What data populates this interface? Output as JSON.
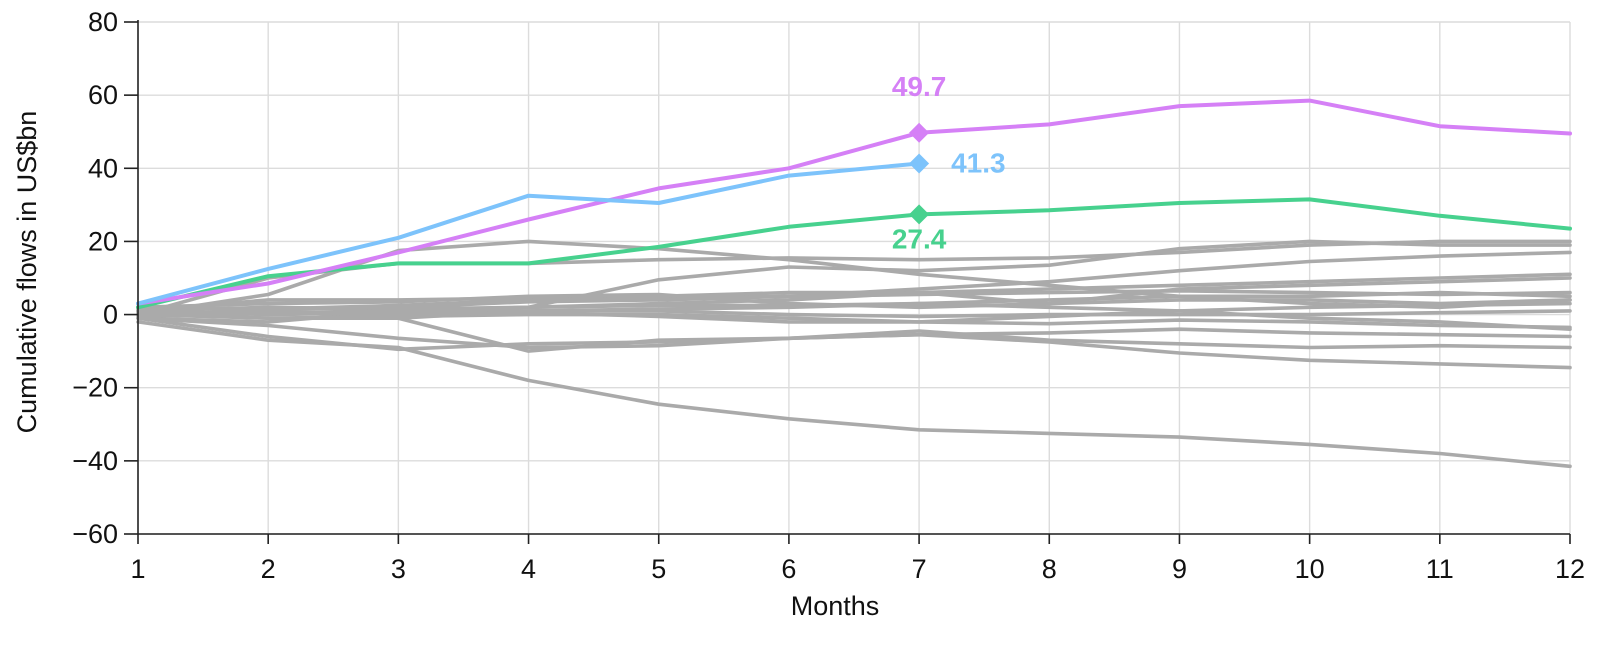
{
  "chart_data": {
    "type": "line",
    "xlabel": "Months",
    "ylabel": "Cumulative flows in US$bn",
    "x": [
      1,
      2,
      3,
      4,
      5,
      6,
      7,
      8,
      9,
      10,
      11,
      12
    ],
    "xlim": [
      1,
      12
    ],
    "ylim": [
      -60,
      80
    ],
    "x_ticks": [
      1,
      2,
      3,
      4,
      5,
      6,
      7,
      8,
      9,
      10,
      11,
      12
    ],
    "y_ticks": [
      -60,
      -40,
      -20,
      0,
      20,
      40,
      60,
      80
    ],
    "grid": true,
    "legend": "none",
    "background_color": "#aaaaaa",
    "highlighted_series": [
      {
        "color": "#d580f6",
        "values": [
          3,
          8.5,
          17,
          26,
          34.5,
          40,
          49.7,
          52,
          57,
          58.5,
          51.5,
          49.5
        ],
        "marker_point": {
          "x": 7,
          "y": 49.7
        },
        "label": "49.7"
      },
      {
        "color": "#7dc3fb",
        "values": [
          3,
          12.5,
          21,
          32.5,
          30.5,
          38,
          41.3,
          null,
          null,
          null,
          null,
          null
        ],
        "marker_point": {
          "x": 7,
          "y": 41.3
        },
        "label": "41.3"
      },
      {
        "color": "#47d18e",
        "values": [
          2,
          10.5,
          14,
          14,
          18.5,
          24,
          27.4,
          28.5,
          30.5,
          31.5,
          27,
          23.5
        ],
        "marker_point": {
          "x": 7,
          "y": 27.4
        },
        "label": "27.4"
      }
    ],
    "background_series": [
      {
        "values": [
          0,
          5.5,
          17.5,
          20,
          18,
          15,
          11,
          8,
          5,
          3,
          2,
          4
        ]
      },
      {
        "values": [
          0,
          10,
          14,
          14,
          15,
          15.5,
          15,
          15.5,
          17,
          19,
          20,
          20
        ]
      },
      {
        "values": [
          -1,
          -2,
          1,
          2,
          9.5,
          13,
          12,
          13.5,
          18,
          20,
          19,
          19
        ]
      },
      {
        "values": [
          1,
          4,
          4,
          4.5,
          5,
          6,
          6,
          7,
          8,
          9,
          10,
          11
        ]
      },
      {
        "values": [
          -2,
          -7,
          -9,
          -18,
          -24.5,
          -28.5,
          -31.5,
          -32.5,
          -33.5,
          -35.5,
          -38,
          -41.5
        ]
      },
      {
        "values": [
          -1,
          -6,
          -9.5,
          -8,
          -7.5,
          -6.5,
          -5.5,
          -7.5,
          -10.5,
          -12.5,
          -13.5,
          -14.5
        ]
      },
      {
        "values": [
          -1,
          -3,
          -6.5,
          -9,
          -8.5,
          -6.5,
          -4.5,
          -7,
          -8,
          -9,
          -8.5,
          -9
        ]
      },
      {
        "values": [
          0,
          1,
          -1,
          -10,
          -7,
          -6.5,
          -5.5,
          -5,
          -4,
          -5,
          -5.5,
          -6
        ]
      },
      {
        "values": [
          2,
          1.5,
          2.5,
          4,
          4.5,
          5,
          5.5,
          6,
          6.5,
          6,
          5.5,
          6
        ]
      },
      {
        "values": [
          1,
          0,
          0.5,
          1,
          1.5,
          2,
          3,
          4,
          5,
          5,
          6,
          5
        ]
      },
      {
        "values": [
          0.5,
          -1,
          -0.5,
          0,
          0,
          -1,
          -2,
          -2.5,
          -1.5,
          -2,
          -3,
          -3.5
        ]
      },
      {
        "values": [
          2,
          3,
          3.5,
          5,
          5.5,
          3,
          2,
          3,
          7,
          8,
          9,
          10
        ]
      },
      {
        "values": [
          1,
          2,
          1.5,
          2,
          3,
          4,
          6,
          3,
          4,
          4,
          3,
          4
        ]
      },
      {
        "values": [
          -0.5,
          0.5,
          1,
          2,
          2.5,
          2.5,
          3,
          2,
          1,
          -1,
          -2,
          -4
        ]
      },
      {
        "values": [
          0,
          -1,
          -1,
          1,
          1,
          0,
          -0.5,
          0,
          0,
          0,
          0.5,
          1
        ]
      },
      {
        "values": [
          1.5,
          1.5,
          2,
          3.5,
          4,
          5,
          7,
          9,
          12,
          14.5,
          16,
          17
        ]
      },
      {
        "values": [
          0,
          1,
          0,
          0.5,
          -0.5,
          -2,
          -2,
          -0.5,
          1,
          2,
          2.5,
          3
        ]
      }
    ]
  }
}
